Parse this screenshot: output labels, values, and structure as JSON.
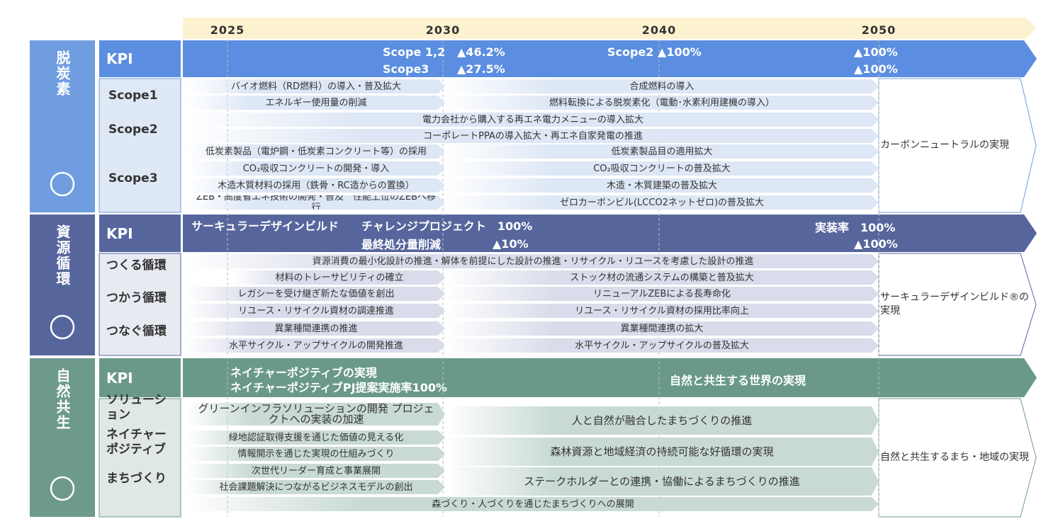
{
  "timeline": {
    "years": [
      "2025",
      "2030",
      "2040",
      "2050"
    ]
  },
  "sections": [
    {
      "title": "脱炭素",
      "kpi": {
        "label": "KPI",
        "texts": [
          "Scope 1,2",
          "▲46.2%",
          "Scope3",
          "▲27.5%",
          "Scope2 ▲100%",
          "▲100%",
          "▲100%"
        ]
      },
      "groups": [
        "Scope1",
        "Scope2",
        "Scope3"
      ],
      "bars": [
        "バイオ燃料（RD燃料）の導入・普及拡大",
        "合成燃料の導入",
        "エネルギー使用量の削減",
        "燃料転換による脱炭素化（電動･水素利用建機の導入）",
        "電力会社から購入する再エネ電力メニューの導入拡大",
        "コーポレートPPAの導入拡大・再エネ自家発電の推進",
        "低炭素製品（電炉鋼・低炭素コンクリート等）の採用",
        "低炭素製品目の適用拡大",
        "CO₂吸収コンクリートの開発・導入",
        "CO₂吸収コンクリートの普及拡大",
        "木造木質材料の採用（鉄骨・RC造からの置換）",
        "木造・木質建築の普及拡大",
        "ZEB・高度省エネ技術の開発・普及　性能上位のZEBへ移行",
        "ゼロカーボンビル(LCCO2ネットゼロ)の普及拡大"
      ],
      "goal": "カーボンニュートラルの実現"
    },
    {
      "title": "資源循環",
      "kpi": {
        "label": "KPI",
        "texts": [
          "サーキュラーデザインビルド",
          "チャレンジプロジェクト　100%",
          "最終処分量削減",
          "▲10%",
          "実装率　100%",
          "▲100%"
        ]
      },
      "groups": [
        "つくる循環",
        "つかう循環",
        "つなぐ循環"
      ],
      "bars": [
        "資源消費の最小化設計の推進・解体を前提にした設計の推進・リサイクル・リユースを考慮した設計の推進",
        "材料のトレーサビリティの確立",
        "ストック材の流通システムの構築と普及拡大",
        "レガシーを受け継ぎ新たな価値を創出",
        "リニューアルZEBによる長寿命化",
        "リユース・リサイクル資材の調達推進",
        "リユース・リサイクル資材の採用比率向上",
        "異業種間連携の推進",
        "異業種間連携の拡大",
        "水平サイクル・アップサイクルの開発推進",
        "水平サイクル・アップサイクルの普及拡大"
      ],
      "goal": "サーキュラーデザインビルド®の実現"
    },
    {
      "title": "自然共生",
      "kpi": {
        "label": "KPI",
        "texts": [
          "ネイチャーポジティブの実現",
          "ネイチャーポジティブPJ提案実施率100%",
          "自然と共生する世界の実現"
        ]
      },
      "groups": [
        "ソリューション",
        "ネイチャーポジティブ",
        "まちづくり"
      ],
      "bars": [
        "グリーンインフラソリューションの開発 プロジェクトへの実装の加速",
        "人と自然が融合したまちづくりの推進",
        "緑地認証取得支援を通じた価値の見える化",
        "情報開示を通じた実現の仕組みづくり",
        "森林資源と地域経済の持続可能な好循環の実現",
        "次世代リーダー育成と事業展開",
        "社会課題解決につながるビジネスモデルの創出",
        "ステークホルダーとの連携・協働によるまちづくりの推進",
        "森づくり・人づくりを通じたまちづくりへの展開"
      ],
      "goal": "自然と共生するまち・地域の実現"
    }
  ]
}
